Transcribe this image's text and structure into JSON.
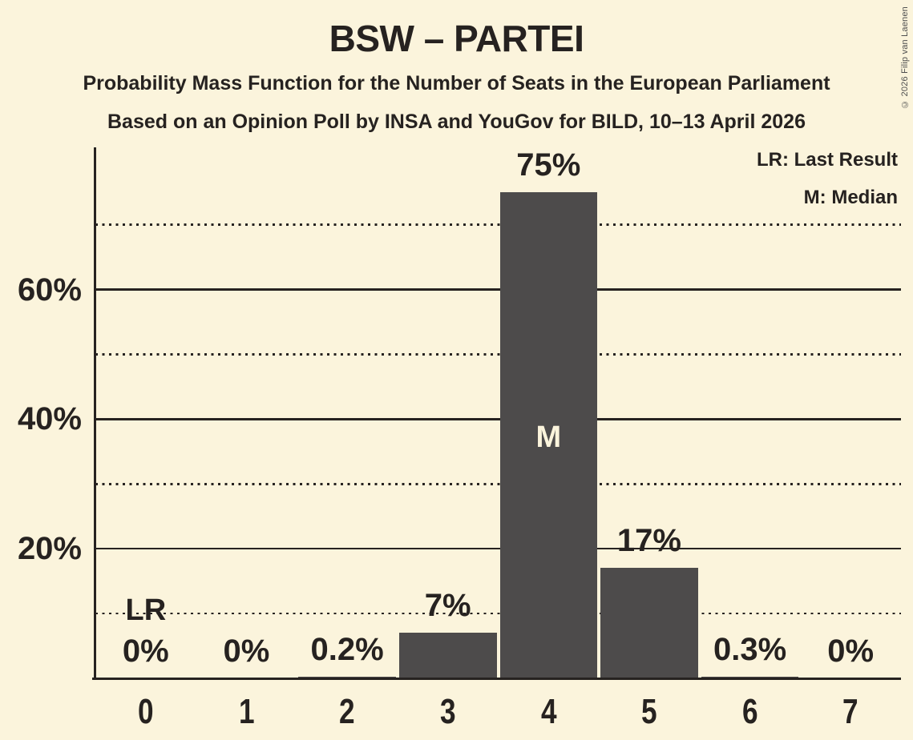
{
  "page": {
    "title": "BSW – PARTEI",
    "subtitle1": "Probability Mass Function for the Number of Seats in the European Parliament",
    "subtitle2": "Based on an Opinion Poll by INSA and YouGov for BILD, 10–13 April 2026",
    "copyright": "© 2026 Filip van Laenen"
  },
  "legend": {
    "lr_label": "LR: Last Result",
    "m_label": "M: Median"
  },
  "colors": {
    "background": "#fbf4dc",
    "bar": "#4d4b4b",
    "text": "#262220",
    "median_text": "#fbf4dc",
    "copyright": "#4f4f4f"
  },
  "chart_data": {
    "type": "bar",
    "title": "BSW – PARTEI",
    "xlabel": "",
    "ylabel": "",
    "categories": [
      "0",
      "1",
      "2",
      "3",
      "4",
      "5",
      "6",
      "7"
    ],
    "values": [
      0,
      0,
      0.2,
      7,
      75,
      17,
      0.3,
      0
    ],
    "value_labels": [
      "0%",
      "0%",
      "0.2%",
      "7%",
      "75%",
      "17%",
      "0.3%",
      "0%"
    ],
    "ylim": [
      0,
      82
    ],
    "y_ticks": [
      {
        "value": 20,
        "label": "20%"
      },
      {
        "value": 40,
        "label": "40%"
      },
      {
        "value": 60,
        "label": "60%"
      }
    ],
    "solid_gridlines": [
      20,
      40,
      60
    ],
    "dotted_gridlines": [
      10,
      30,
      50,
      70
    ],
    "grid": true,
    "legend_position": "top-right",
    "median_index": 4,
    "median_marker": "M",
    "last_result_index": 0,
    "last_result_marker": "LR"
  }
}
